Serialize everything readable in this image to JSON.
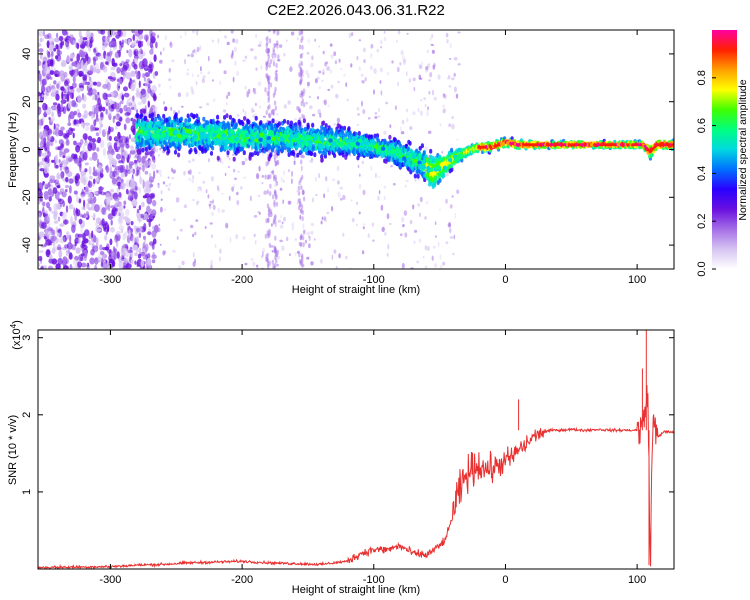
{
  "title": "C2E2.2026.043.06.31.R22",
  "chart_data": [
    {
      "type": "heatmap",
      "xlabel": "Height of straight line (km)",
      "ylabel": "Frequency (Hz)",
      "xlim": [
        -355,
        128
      ],
      "ylim": [
        -50,
        50
      ],
      "x_ticks": [
        -300,
        -200,
        -100,
        0,
        100
      ],
      "y_ticks": [
        -40,
        -20,
        0,
        20,
        40
      ],
      "x_tick_labels": [
        "-300",
        "-200",
        "-100",
        "0",
        "100"
      ],
      "y_tick_labels": [
        "-40",
        "-20",
        "0",
        "20",
        "40"
      ],
      "colorbar": {
        "label": "Normalized spectral amplitude",
        "range": [
          0,
          1
        ],
        "ticks": [
          0.0,
          0.2,
          0.4,
          0.6,
          0.8
        ],
        "tick_labels": [
          "0.0",
          "0.2",
          "0.4",
          "0.6",
          "0.8"
        ],
        "colormap": [
          "#ffffff",
          "#d6c4f2",
          "#a46ee6",
          "#6a10e0",
          "#2a00ff",
          "#0070ff",
          "#00d8e0",
          "#00ff80",
          "#40ff00",
          "#ffff00",
          "#ffa000",
          "#ff2000",
          "#ff00a0"
        ]
      },
      "ridge": {
        "x": [
          -275,
          -250,
          -220,
          -200,
          -170,
          -150,
          -120,
          -100,
          -90,
          -80,
          -70,
          -60,
          -55,
          -50,
          -40,
          -30,
          -20,
          -10,
          -5,
          0,
          10,
          30,
          60,
          90,
          105,
          110,
          115,
          128
        ],
        "frequency": [
          7,
          7,
          6,
          5,
          5,
          4,
          3,
          1,
          0,
          -2,
          -4,
          -7,
          -10,
          -8,
          -4,
          -1,
          1,
          1,
          2,
          3,
          2,
          2,
          2,
          2,
          2,
          -1,
          2,
          2
        ],
        "spread": [
          8,
          8,
          8,
          8,
          7,
          7,
          6,
          5,
          5,
          6,
          7,
          8,
          8,
          6,
          4,
          2,
          2,
          2,
          2,
          2,
          2,
          1.5,
          1.5,
          1.5,
          1.5,
          3,
          2,
          2
        ]
      }
    },
    {
      "type": "line",
      "xlabel": "Height of straight line (km)",
      "ylabel": "SNR (10 * v/v)",
      "y_multiplier": "(x10",
      "y_multiplier_exponent": "4",
      "xlim": [
        -355,
        128
      ],
      "ylim": [
        0,
        3.1
      ],
      "x_ticks": [
        -300,
        -200,
        -100,
        0,
        100
      ],
      "y_ticks": [
        1,
        2,
        3
      ],
      "x_tick_labels": [
        "-300",
        "-200",
        "-100",
        "0",
        "100"
      ],
      "y_tick_labels": [
        "1",
        "2",
        "3"
      ],
      "color": "#e83030",
      "series": [
        {
          "name": "SNR",
          "x": [
            -355,
            -300,
            -280,
            -260,
            -240,
            -220,
            -200,
            -180,
            -160,
            -140,
            -120,
            -110,
            -100,
            -90,
            -80,
            -70,
            -60,
            -50,
            -45,
            -40,
            -35,
            -30,
            -25,
            -20,
            -15,
            -10,
            -5,
            0,
            5,
            10,
            15,
            20,
            25,
            30,
            35,
            40,
            50,
            60,
            70,
            80,
            90,
            100,
            104,
            106,
            108,
            110,
            112,
            115,
            120,
            128
          ],
          "y": [
            0.02,
            0.03,
            0.05,
            0.06,
            0.08,
            0.09,
            0.1,
            0.08,
            0.07,
            0.06,
            0.1,
            0.2,
            0.25,
            0.25,
            0.3,
            0.2,
            0.18,
            0.3,
            0.4,
            0.7,
            1.0,
            1.2,
            1.3,
            1.35,
            1.3,
            1.3,
            1.35,
            1.4,
            1.45,
            1.55,
            1.6,
            1.7,
            1.75,
            1.78,
            1.8,
            1.8,
            1.81,
            1.8,
            1.81,
            1.8,
            1.8,
            1.8,
            1.85,
            2.0,
            2.4,
            0.1,
            2.0,
            1.7,
            1.78,
            1.77
          ]
        }
      ]
    }
  ]
}
